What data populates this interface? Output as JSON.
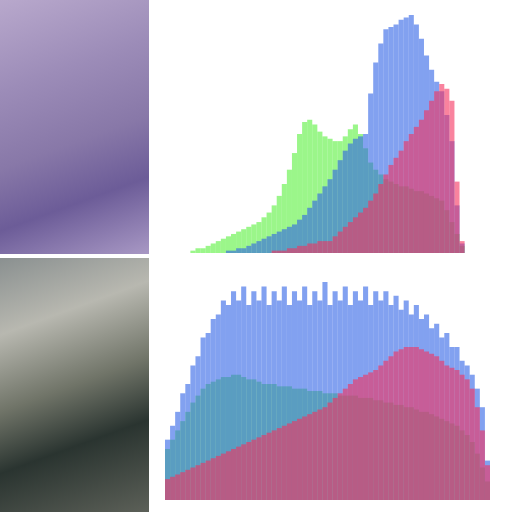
{
  "chart_data": [
    {
      "type": "histogram",
      "bins": [
        0,
        4,
        8,
        12,
        16,
        20,
        24,
        28,
        32,
        36,
        40,
        44,
        48,
        52,
        56,
        60,
        64,
        68,
        72,
        76,
        80,
        84,
        88,
        92,
        96,
        100,
        104,
        108,
        112,
        116,
        120,
        124,
        128,
        132,
        136,
        140,
        144,
        148,
        152,
        156,
        160,
        164,
        168,
        172,
        176,
        180,
        184,
        188,
        192,
        196,
        200,
        204,
        208,
        212,
        216,
        220,
        224,
        228,
        232,
        236,
        240,
        244,
        248,
        252,
        256
      ],
      "ylim": [
        0,
        100
      ],
      "tick_labels": false,
      "grid": false,
      "series": [
        {
          "color": "#58f03c",
          "values": [
            0,
            0,
            0,
            0,
            0,
            1,
            2,
            2,
            3,
            4,
            5,
            6,
            7,
            8,
            9,
            10,
            11,
            12,
            13,
            15,
            17,
            20,
            24,
            29,
            35,
            42,
            50,
            55,
            56,
            54,
            51,
            49,
            48,
            47,
            47,
            49,
            52,
            54,
            50,
            44,
            38,
            35,
            33,
            31,
            30,
            29,
            28,
            28,
            27,
            26,
            26,
            25,
            24,
            23,
            22,
            18,
            13,
            8,
            3,
            0,
            0,
            0,
            0,
            0
          ]
        },
        {
          "color": "#2f62e6",
          "values": [
            0,
            0,
            0,
            0,
            0,
            0,
            0,
            0,
            0,
            0,
            0,
            0,
            1,
            1,
            2,
            2,
            3,
            4,
            5,
            6,
            7,
            8,
            9,
            10,
            11,
            12,
            14,
            16,
            19,
            22,
            25,
            28,
            31,
            35,
            39,
            43,
            46,
            48,
            49,
            50,
            67,
            80,
            88,
            94,
            95,
            96,
            98,
            99,
            100,
            96,
            90,
            83,
            77,
            72,
            68,
            58,
            47,
            20,
            4,
            0,
            0,
            0,
            0,
            0
          ]
        },
        {
          "color": "#f5305e",
          "values": [
            0,
            0,
            0,
            0,
            0,
            0,
            0,
            0,
            0,
            0,
            0,
            0,
            0,
            0,
            0,
            0,
            0,
            0,
            0,
            0,
            0,
            1,
            1,
            1,
            2,
            2,
            3,
            3,
            4,
            4,
            5,
            5,
            5,
            7,
            9,
            11,
            13,
            15,
            17,
            19,
            22,
            25,
            29,
            33,
            37,
            40,
            43,
            47,
            50,
            53,
            56,
            60,
            64,
            68,
            71,
            69,
            64,
            30,
            5,
            0,
            0,
            0,
            0,
            0
          ]
        }
      ]
    },
    {
      "type": "histogram",
      "bins": [
        0,
        4,
        8,
        12,
        16,
        20,
        24,
        28,
        32,
        36,
        40,
        44,
        48,
        52,
        56,
        60,
        64,
        68,
        72,
        76,
        80,
        84,
        88,
        92,
        96,
        100,
        104,
        108,
        112,
        116,
        120,
        124,
        128,
        132,
        136,
        140,
        144,
        148,
        152,
        156,
        160,
        164,
        168,
        172,
        176,
        180,
        184,
        188,
        192,
        196,
        200,
        204,
        208,
        212,
        216,
        220,
        224,
        228,
        232,
        236,
        240,
        244,
        248,
        252,
        256
      ],
      "ylim": [
        0,
        100
      ],
      "tick_labels": false,
      "grid": false,
      "series": [
        {
          "color": "#58f03c",
          "values": [
            22,
            26,
            30,
            34,
            38,
            42,
            45,
            48,
            50,
            51,
            52,
            53,
            53,
            54,
            54,
            53,
            52,
            52,
            51,
            50,
            50,
            50,
            49,
            49,
            49,
            48,
            48,
            48,
            47,
            47,
            47,
            46,
            46,
            46,
            45,
            45,
            45,
            45,
            44,
            44,
            44,
            43,
            43,
            42,
            42,
            41,
            41,
            40,
            40,
            39,
            38,
            38,
            37,
            36,
            35,
            34,
            33,
            32,
            30,
            28,
            25,
            20,
            14,
            8
          ]
        },
        {
          "color": "#2f62e6",
          "values": [
            26,
            32,
            38,
            46,
            50,
            58,
            62,
            70,
            72,
            78,
            80,
            86,
            84,
            90,
            86,
            92,
            84,
            90,
            86,
            92,
            84,
            90,
            86,
            92,
            84,
            90,
            86,
            92,
            84,
            90,
            86,
            94,
            84,
            90,
            86,
            92,
            84,
            90,
            86,
            92,
            84,
            90,
            86,
            90,
            84,
            88,
            82,
            86,
            80,
            84,
            78,
            80,
            74,
            76,
            70,
            72,
            66,
            66,
            60,
            58,
            54,
            48,
            40,
            17
          ]
        },
        {
          "color": "#f5305e",
          "values": [
            9,
            10,
            11,
            12,
            13,
            14,
            15,
            16,
            17,
            18,
            19,
            20,
            21,
            22,
            23,
            24,
            25,
            26,
            27,
            28,
            29,
            30,
            31,
            32,
            33,
            34,
            35,
            36,
            37,
            38,
            39,
            40,
            42,
            44,
            46,
            48,
            50,
            52,
            53,
            54,
            55,
            56,
            58,
            60,
            62,
            64,
            65,
            66,
            66,
            66,
            65,
            64,
            63,
            62,
            60,
            58,
            57,
            56,
            54,
            52,
            48,
            40,
            30,
            15
          ]
        }
      ]
    }
  ]
}
